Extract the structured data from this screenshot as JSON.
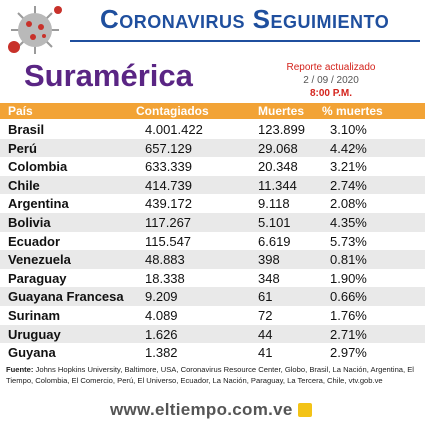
{
  "header": {
    "title": "Coronavirus Seguimiento",
    "region": "Suramérica",
    "report_label": "Reporte actualizado",
    "date": "2 / 09 / 2020",
    "time": "8:00 P.M."
  },
  "table": {
    "columns": [
      "País",
      "Contagiados",
      "Muertes",
      "% muertes"
    ],
    "rows": [
      [
        "Brasil",
        "4.001.422",
        "123.899",
        "3.10%"
      ],
      [
        "Perú",
        "657.129",
        "29.068",
        "4.42%"
      ],
      [
        "Colombia",
        "633.339",
        "20.348",
        "3.21%"
      ],
      [
        "Chile",
        "414.739",
        "11.344",
        "2.74%"
      ],
      [
        "Argentina",
        "439.172",
        "9.118",
        "2.08%"
      ],
      [
        "Bolivia",
        "117.267",
        "5.101",
        "4.35%"
      ],
      [
        "Ecuador",
        "115.547",
        "6.619",
        "5.73%"
      ],
      [
        "Venezuela",
        "48.883",
        "398",
        "0.81%"
      ],
      [
        "Paraguay",
        "18.338",
        "348",
        "1.90%"
      ],
      [
        "Guayana Francesa",
        "9.209",
        "61",
        "0.66%"
      ],
      [
        "Surinam",
        "4.089",
        "72",
        "1.76%"
      ],
      [
        "Uruguay",
        "1.626",
        "44",
        "2.71%"
      ],
      [
        "Guyana",
        "1.382",
        "41",
        "2.97%"
      ]
    ]
  },
  "footer": {
    "source_label": "Fuente:",
    "source": "Johns Hopkins University, Baltimore, USA, Coronavirus Resource Center, Globo, Brasil, La Nación, Argentina, El Tiempo, Colombia, El Comercio, Perú, El Universo, Ecuador, La Nación, Paraguay, La Tercera, Chile, vtv.gob.ve",
    "website": "www.eltiempo.com.ve"
  }
}
